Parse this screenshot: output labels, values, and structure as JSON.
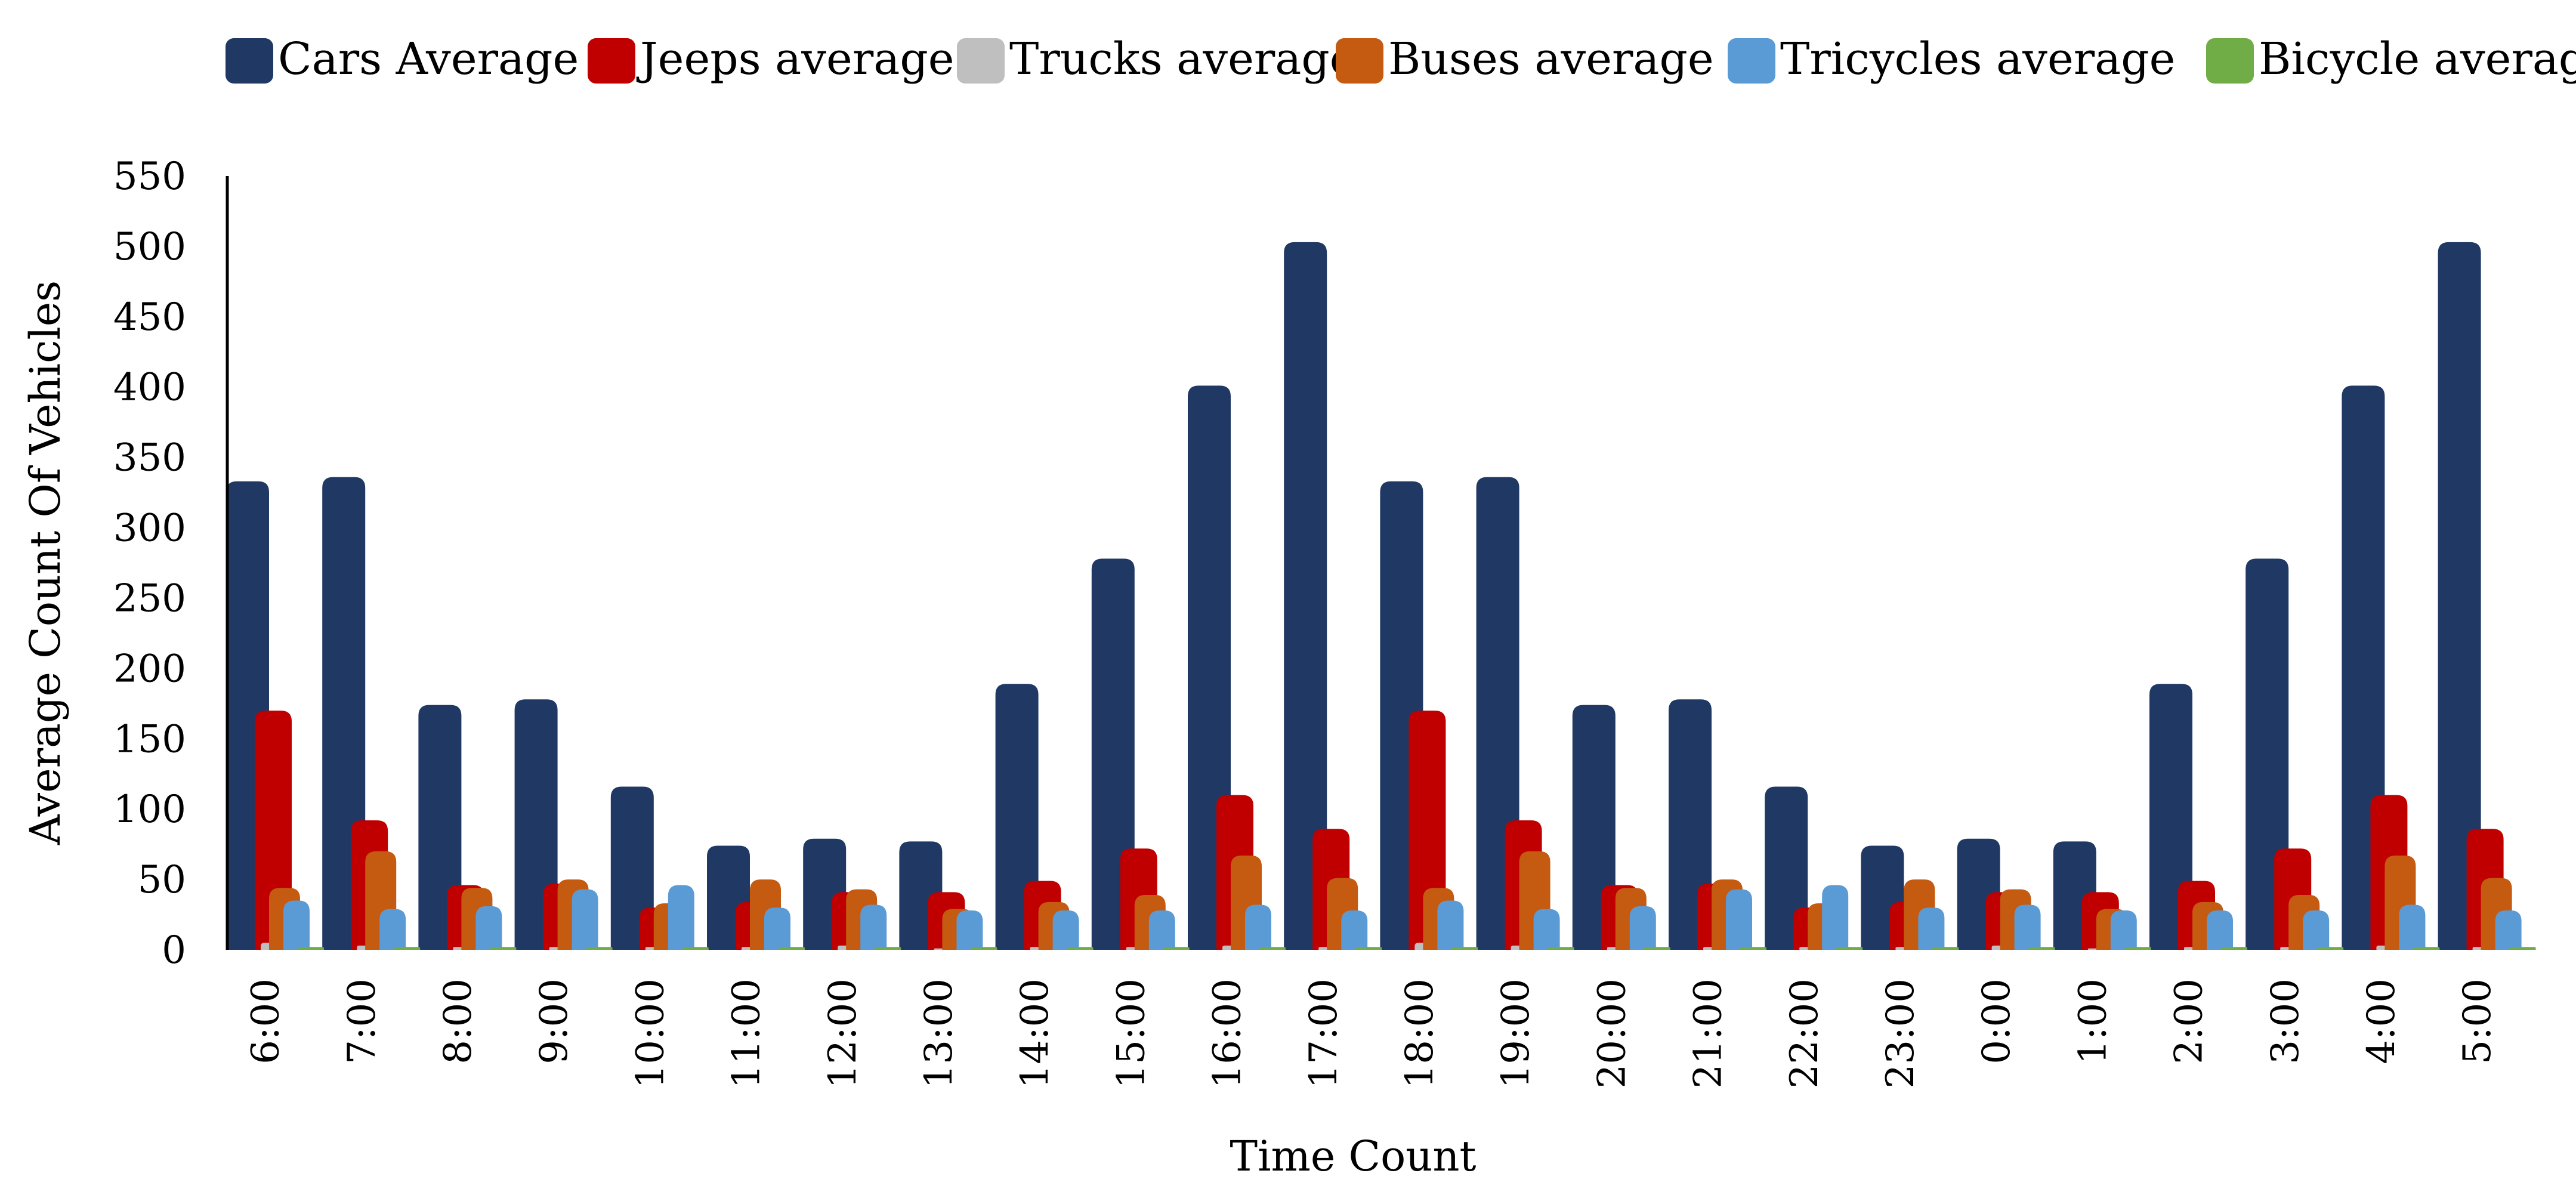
{
  "chart_data": {
    "type": "bar",
    "title": "",
    "xlabel": "Time Count",
    "ylabel": "Average Count Of Vehicles",
    "ylim": [
      0,
      550
    ],
    "yticks": [
      0,
      50,
      100,
      150,
      200,
      250,
      300,
      350,
      400,
      450,
      500,
      550
    ],
    "legend_position": "top",
    "categories": [
      "6:00",
      "7:00",
      "8:00",
      "9:00",
      "10:00",
      "11:00",
      "12:00",
      "13:00",
      "14:00",
      "15:00",
      "16:00",
      "17:00",
      "18:00",
      "19:00",
      "20:00",
      "21:00",
      "22:00",
      "23:00",
      "0:00",
      "1:00",
      "2:00",
      "3:00",
      "4:00",
      "5:00"
    ],
    "series": [
      {
        "name": "Cars Average",
        "color": "#1F3864",
        "values": [
          333,
          336,
          174,
          178,
          116,
          74,
          79,
          77,
          189,
          278,
          401,
          503,
          333,
          336,
          174,
          178,
          116,
          74,
          79,
          77,
          189,
          278,
          401,
          503
        ]
      },
      {
        "name": "Jeeps average",
        "color": "#C00000",
        "values": [
          170,
          92,
          46,
          47,
          30,
          34,
          41,
          41,
          49,
          72,
          110,
          86,
          170,
          92,
          46,
          47,
          30,
          34,
          41,
          41,
          49,
          72,
          110,
          86
        ]
      },
      {
        "name": "Trucks average",
        "color": "#BFBFBF",
        "values": [
          5,
          3,
          2,
          2,
          2,
          2,
          3,
          1,
          2,
          2,
          3,
          2,
          5,
          3,
          2,
          2,
          2,
          2,
          3,
          1,
          2,
          2,
          3,
          2
        ]
      },
      {
        "name": "Buses average",
        "color": "#C55A11",
        "values": [
          44,
          70,
          44,
          50,
          33,
          50,
          43,
          29,
          34,
          39,
          67,
          51,
          44,
          70,
          44,
          50,
          33,
          50,
          43,
          29,
          34,
          39,
          67,
          51
        ]
      },
      {
        "name": "Tricycles average",
        "color": "#5B9BD5",
        "values": [
          35,
          29,
          31,
          43,
          46,
          30,
          32,
          28,
          28,
          28,
          32,
          28,
          35,
          29,
          31,
          43,
          46,
          30,
          32,
          28,
          28,
          28,
          32,
          28
        ]
      },
      {
        "name": "Bicycle average",
        "color": "#70AD47",
        "values": [
          2,
          2,
          2,
          2,
          2,
          2,
          2,
          2,
          2,
          2,
          2,
          2,
          2,
          2,
          2,
          2,
          2,
          2,
          2,
          2,
          2,
          2,
          2,
          2
        ]
      }
    ]
  }
}
